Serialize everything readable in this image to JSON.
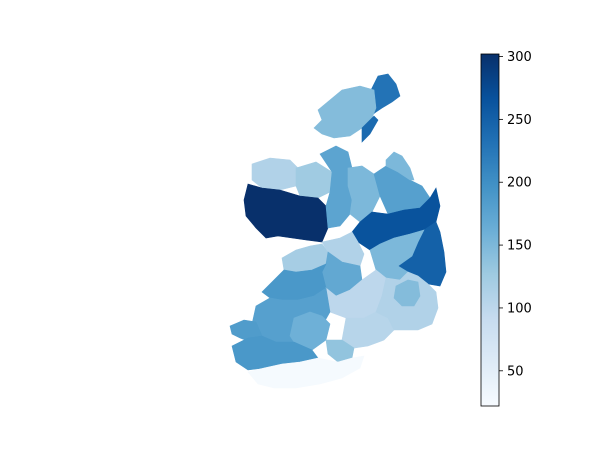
{
  "map": {
    "colormap": "Blues",
    "background": "#ffffff",
    "colorbar": {
      "min": 22,
      "max": 302,
      "ticks": [
        {
          "value": 50,
          "label": "50"
        },
        {
          "value": 100,
          "label": "100"
        },
        {
          "value": 150,
          "label": "150"
        },
        {
          "value": 200,
          "label": "200"
        },
        {
          "value": 250,
          "label": "250"
        },
        {
          "value": 300,
          "label": "300"
        }
      ],
      "stops": [
        "#f7fbff",
        "#deebf7",
        "#c6dbef",
        "#9ecae1",
        "#6baed6",
        "#4292c6",
        "#2171b5",
        "#08519c",
        "#08306b"
      ]
    },
    "regions": [
      {
        "id": "north-tip",
        "value": 230
      },
      {
        "id": "northwest",
        "value": 145
      },
      {
        "id": "north-east-coast",
        "value": 240
      },
      {
        "id": "far-west-upper",
        "value": 110
      },
      {
        "id": "west-mid-north",
        "value": 125
      },
      {
        "id": "west-large",
        "value": 302
      },
      {
        "id": "north-central",
        "value": 175
      },
      {
        "id": "central-north",
        "value": 150
      },
      {
        "id": "central-north-east",
        "value": 180
      },
      {
        "id": "northeast-light",
        "value": 150
      },
      {
        "id": "east-large",
        "value": 265
      },
      {
        "id": "east-coast",
        "value": 250
      },
      {
        "id": "east-mid",
        "value": 150
      },
      {
        "id": "west-mid",
        "value": 120
      },
      {
        "id": "central",
        "value": 110
      },
      {
        "id": "midlands",
        "value": 170
      },
      {
        "id": "southwest-north",
        "value": 190
      },
      {
        "id": "south-central-a",
        "value": 100
      },
      {
        "id": "south-central-b",
        "value": 105
      },
      {
        "id": "south-east-b",
        "value": 110
      },
      {
        "id": "southeast-inland",
        "value": 145
      },
      {
        "id": "southwest-mid",
        "value": 180
      },
      {
        "id": "southwest-mid2",
        "value": 160
      },
      {
        "id": "south-center",
        "value": 135
      },
      {
        "id": "southwest-peninsula-a",
        "value": 185
      },
      {
        "id": "southwest-peninsula-b",
        "value": 190
      },
      {
        "id": "south-coast",
        "value": 25
      }
    ]
  }
}
